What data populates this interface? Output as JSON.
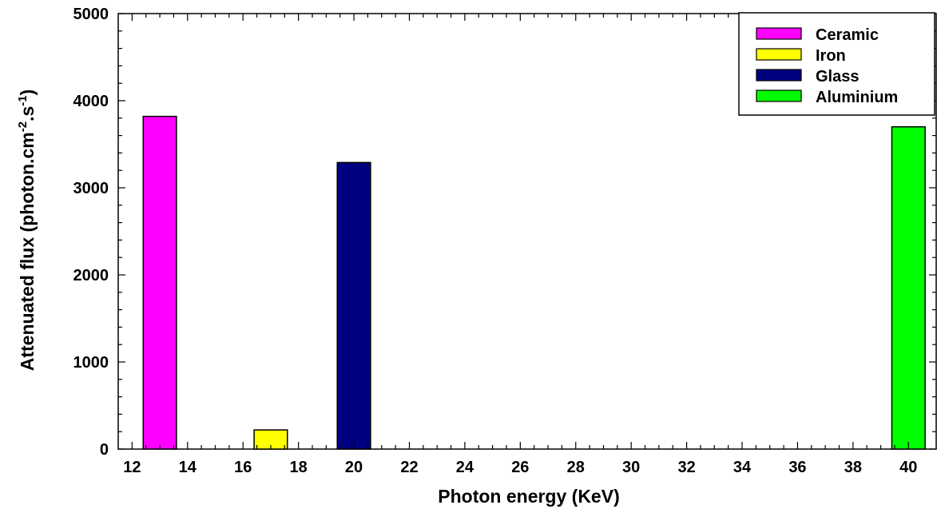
{
  "chart_data": {
    "type": "bar",
    "title": "",
    "xlabel": "Photon energy (KeV)",
    "ylabel": {
      "base": "Attenuated flux (photon.cm",
      "exp1": "-2",
      "mid": ".s",
      "exp2": "-1",
      "end": ")"
    },
    "xlim": [
      11.5,
      41
    ],
    "ylim": [
      0,
      5000
    ],
    "xticks": [
      12,
      14,
      16,
      18,
      20,
      22,
      24,
      26,
      28,
      30,
      32,
      34,
      36,
      38,
      40
    ],
    "yticks": [
      0,
      1000,
      2000,
      3000,
      4000,
      5000
    ],
    "bar_width": 1.2,
    "grid": false,
    "legend_position": "top-right",
    "series": [
      {
        "name": "Ceramic",
        "x": 13,
        "value": 3820,
        "color": "#ff00ff"
      },
      {
        "name": "Iron",
        "x": 17,
        "value": 220,
        "color": "#ffff00"
      },
      {
        "name": "Glass",
        "x": 20,
        "value": 3290,
        "color": "#000080"
      },
      {
        "name": "Aluminium",
        "x": 40,
        "value": 3700,
        "color": "#00ff00"
      }
    ]
  }
}
